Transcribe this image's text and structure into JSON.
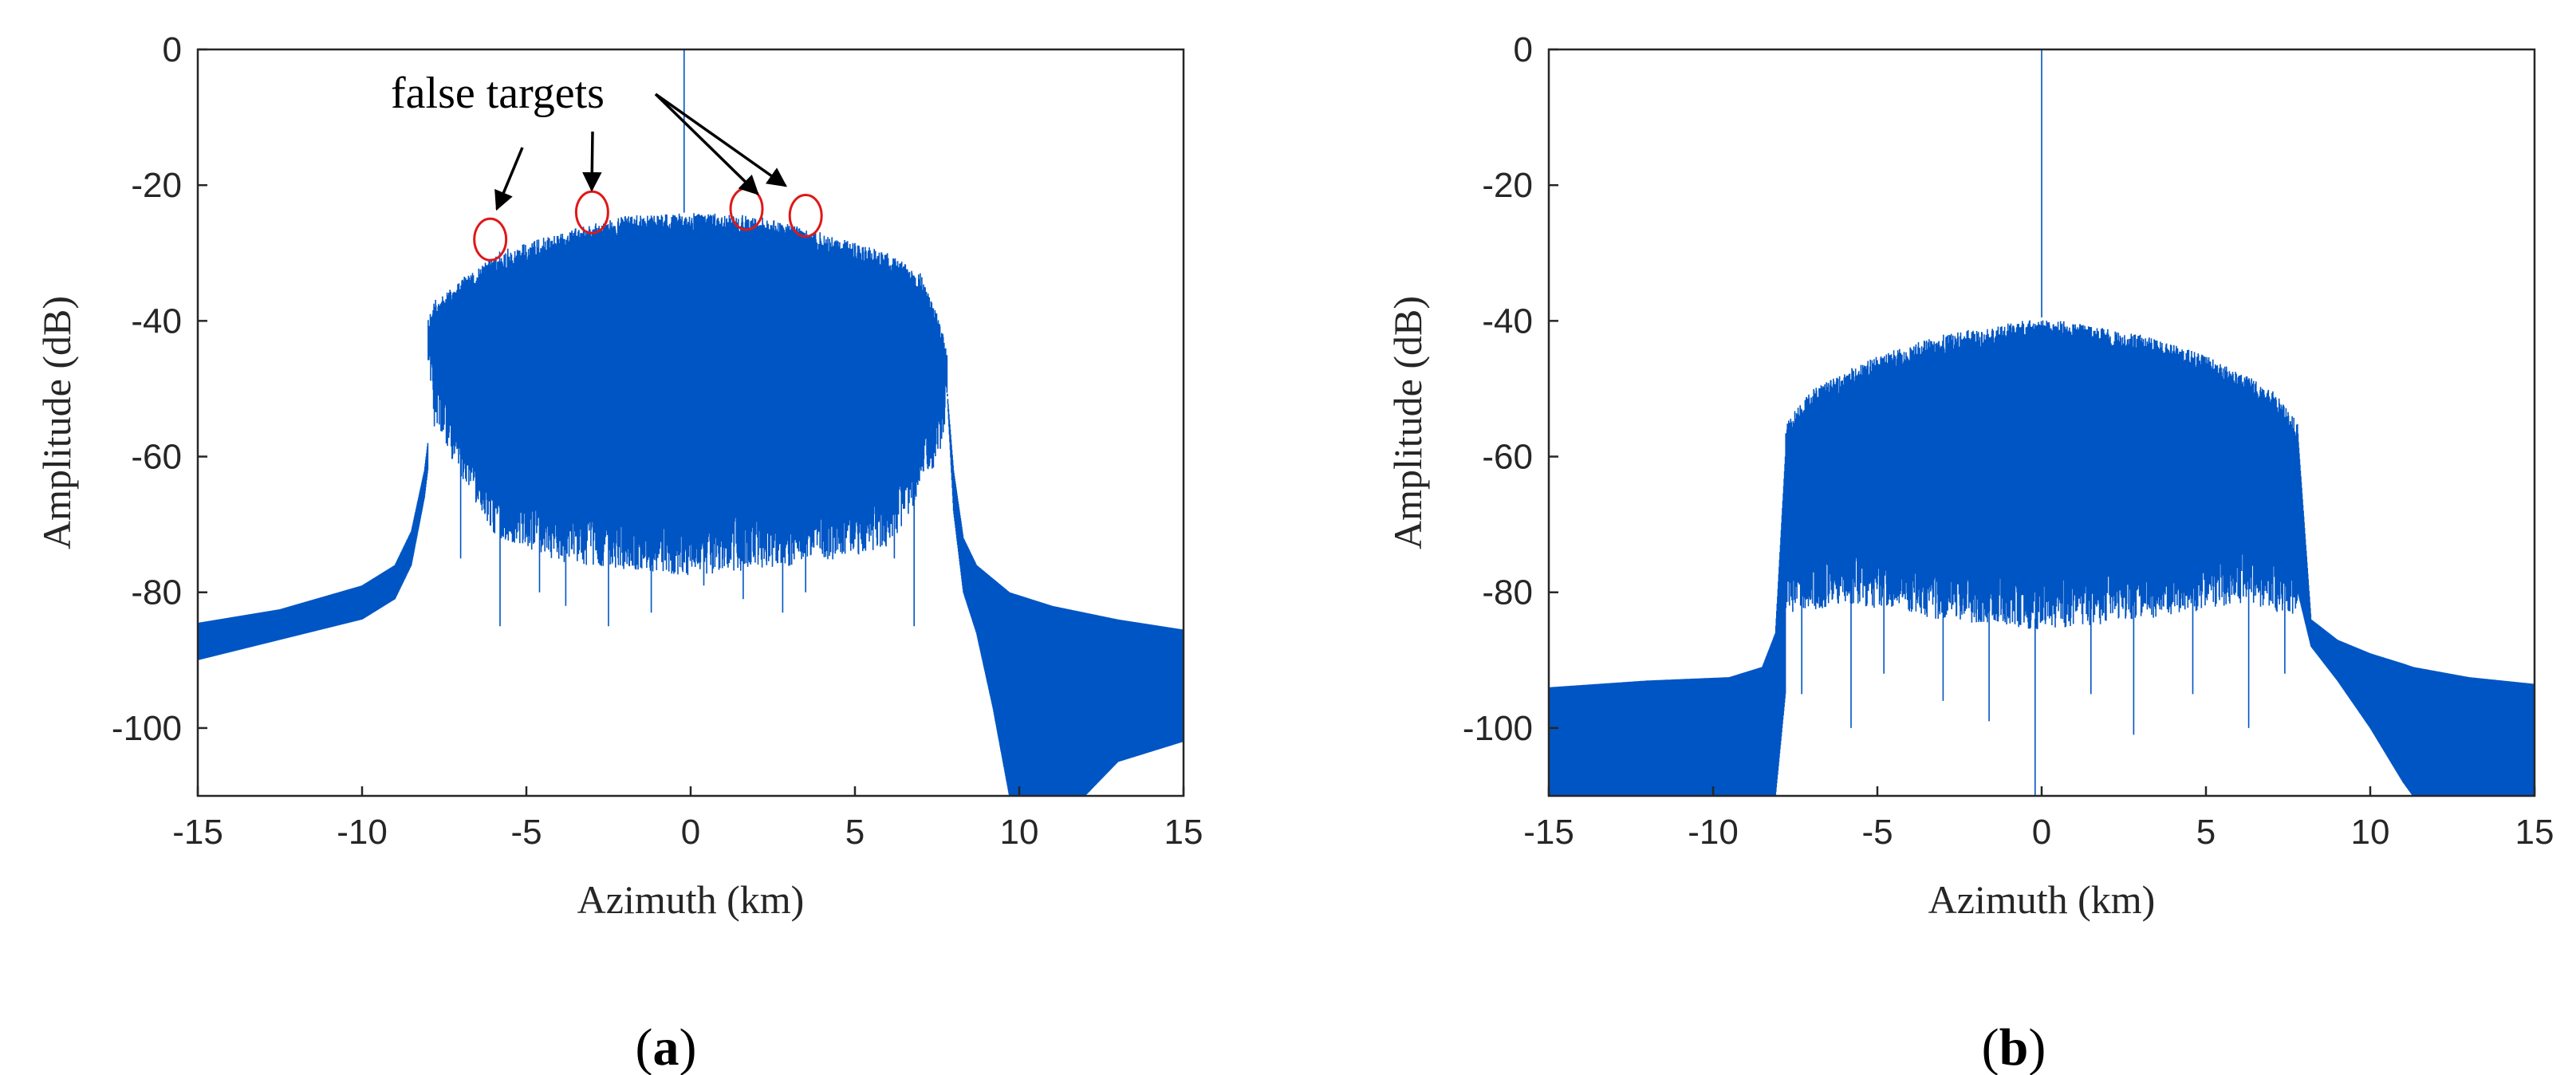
{
  "colors": {
    "series": "#0055c4",
    "marker": "#e01818",
    "axis": "#262626"
  },
  "chart_data": [
    {
      "type": "line",
      "panel_label": "a",
      "xlabel": "Azimuth (km)",
      "ylabel": "Amplitude (dB)",
      "xlim": [
        -15,
        15
      ],
      "ylim": [
        -110,
        0
      ],
      "xticks": [
        -15,
        -10,
        -5,
        0,
        5,
        10,
        15
      ],
      "yticks": [
        0,
        -20,
        -40,
        -60,
        -80,
        -100
      ],
      "grid": false,
      "annotation": "false targets",
      "false_targets": [
        {
          "x": -6.1,
          "y": -28
        },
        {
          "x": -3.0,
          "y": -24
        },
        {
          "x": 1.7,
          "y": -23.5
        },
        {
          "x": 3.5,
          "y": -24.5
        }
      ],
      "series": [
        {
          "name": "amplitude",
          "main_peak": {
            "x": -0.2,
            "y": 0
          },
          "upper_envelope": [
            [
              -8,
              -40
            ],
            [
              -7.8,
              -37
            ],
            [
              -6,
              -30
            ],
            [
              -4,
              -27
            ],
            [
              -2,
              -24.5
            ],
            [
              0,
              -24
            ],
            [
              2,
              -24.5
            ],
            [
              4,
              -27
            ],
            [
              6,
              -30
            ],
            [
              7,
              -33
            ],
            [
              7.5,
              -39
            ],
            [
              7.8,
              -44
            ]
          ],
          "lower_envelope": [
            [
              -8,
              -43
            ],
            [
              -7.8,
              -54
            ],
            [
              -6,
              -70
            ],
            [
              -4,
              -74
            ],
            [
              0,
              -76
            ],
            [
              4,
              -74
            ],
            [
              6,
              -72
            ],
            [
              7.5,
              -60
            ],
            [
              7.8,
              -52
            ]
          ],
          "deep_nulls": [
            [
              -7,
              -75
            ],
            [
              -5.8,
              -85
            ],
            [
              -4.6,
              -80
            ],
            [
              -3.8,
              -82
            ],
            [
              -2.5,
              -85
            ],
            [
              -1.2,
              -83
            ],
            [
              0.4,
              -79
            ],
            [
              1.6,
              -81
            ],
            [
              2.8,
              -83
            ],
            [
              3.5,
              -80
            ],
            [
              6.8,
              -85
            ],
            [
              6.2,
              -75
            ]
          ],
          "left_tail": [
            [
              -15,
              -84.5,
              -90
            ],
            [
              -12.5,
              -82.5,
              -87
            ],
            [
              -10,
              -79,
              -84
            ],
            [
              -9,
              -76,
              -81
            ],
            [
              -8.5,
              -71,
              -76
            ],
            [
              -8.1,
              -62,
              -66
            ],
            [
              -8,
              -58,
              -62
            ]
          ],
          "right_tail": [
            [
              7.8,
              -50,
              -50
            ],
            [
              8,
              -62,
              -68
            ],
            [
              8.3,
              -72,
              -80
            ],
            [
              8.7,
              -76,
              -86
            ],
            [
              9.2,
              -78,
              -97
            ],
            [
              9.7,
              -80,
              -110
            ],
            [
              11,
              -82,
              -110
            ],
            [
              12,
              -83,
              -110
            ],
            [
              13,
              -84,
              -105
            ],
            [
              15,
              -85.5,
              -102
            ]
          ]
        }
      ]
    },
    {
      "type": "line",
      "panel_label": "b",
      "xlabel": "Azimuth (km)",
      "ylabel": "Amplitude (dB)",
      "xlim": [
        -15,
        15
      ],
      "ylim": [
        -110,
        0
      ],
      "xticks": [
        -15,
        -10,
        -5,
        0,
        5,
        10,
        15
      ],
      "yticks": [
        0,
        -20,
        -40,
        -60,
        -80,
        -100
      ],
      "grid": false,
      "series": [
        {
          "name": "amplitude",
          "main_peak": {
            "x": 0,
            "y": 0
          },
          "secondary_peak": {
            "x": 0,
            "y": -32
          },
          "central_null": {
            "x": -0.2,
            "y": -110
          },
          "upper_envelope": [
            [
              -7.8,
              -55
            ],
            [
              -7,
              -50
            ],
            [
              -5,
              -45
            ],
            [
              -3,
              -42
            ],
            [
              0,
              -39.5
            ],
            [
              3,
              -42
            ],
            [
              5,
              -45
            ],
            [
              7,
              -50
            ],
            [
              7.8,
              -55
            ]
          ],
          "lower_envelope": [
            [
              -7.8,
              -82
            ],
            [
              -6,
              -80
            ],
            [
              -4,
              -82
            ],
            [
              0,
              -84
            ],
            [
              4,
              -82
            ],
            [
              6,
              -80
            ],
            [
              7.8,
              -82
            ]
          ],
          "deep_nulls": [
            [
              -7.3,
              -95
            ],
            [
              -5.8,
              -100
            ],
            [
              -4.8,
              -92
            ],
            [
              -3,
              -96
            ],
            [
              -1.6,
              -99
            ],
            [
              1.5,
              -95
            ],
            [
              2.8,
              -101
            ],
            [
              4.6,
              -95
            ],
            [
              6.3,
              -100
            ],
            [
              7.4,
              -92
            ]
          ],
          "left_tail": [
            [
              -15,
              -94,
              -110
            ],
            [
              -12,
              -93,
              -110
            ],
            [
              -9.5,
              -92.5,
              -110
            ],
            [
              -8.5,
              -91,
              -110
            ],
            [
              -8.1,
              -86,
              -110
            ],
            [
              -7.8,
              -60,
              -95
            ]
          ],
          "right_tail": [
            [
              7.8,
              -57,
              -80
            ],
            [
              8.2,
              -84,
              -88
            ],
            [
              9,
              -87,
              -93
            ],
            [
              10,
              -89,
              -100
            ],
            [
              11,
              -90.5,
              -108
            ],
            [
              11.3,
              -91,
              -110
            ],
            [
              13,
              -92.5,
              -110
            ],
            [
              15,
              -93.5,
              -110
            ]
          ]
        }
      ]
    }
  ]
}
